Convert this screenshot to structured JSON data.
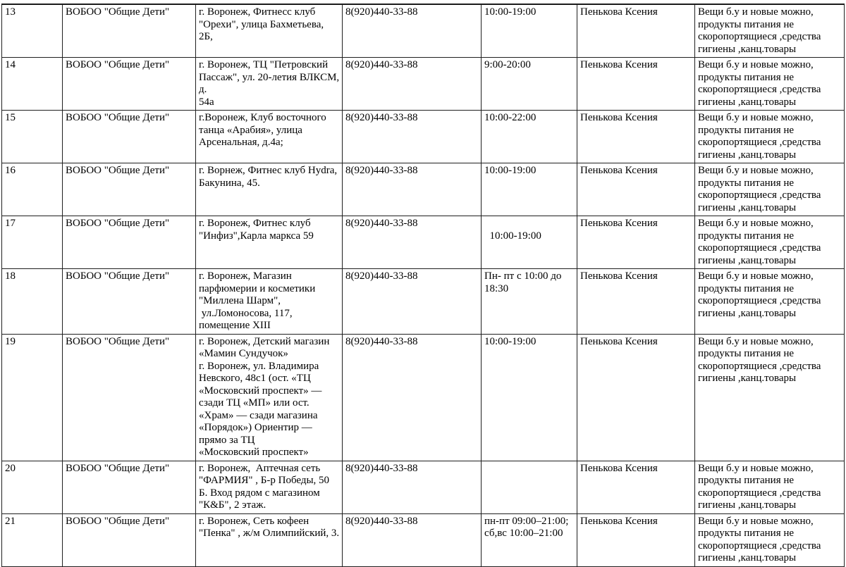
{
  "table": {
    "rows": [
      {
        "num": "13",
        "org": "ВОБОО \"Общие Дети\"",
        "address": "г. Воронеж, Фитнесс клуб \"Орехи\", улица Бахметьева, 2Б,",
        "phone": "8(920)440-33-88",
        "hours": "10:00-19:00",
        "contact": "Пенькова Ксения",
        "items": "Вещи б.у и новые можно, продукты питания не скоропортящиеся ,средства гигиены ,канц.товары"
      },
      {
        "num": "14",
        "org": "ВОБОО \"Общие Дети\"",
        "address": "г. Воронеж, ТЦ \"Петровский Пассаж\", ул. 20-летия ВЛКСМ, д.\n54а",
        "phone": "8(920)440-33-88",
        "hours": "9:00-20:00",
        "contact": "Пенькова Ксения",
        "items": "Вещи б.у и новые можно, продукты питания не скоропортящиеся ,средства гигиены ,канц.товары"
      },
      {
        "num": "15",
        "org": "ВОБОО \"Общие Дети\"",
        "address": "г.Воронеж, Клуб восточного танца «Арабия», улица Арсенальная, д.4а;",
        "phone": "8(920)440-33-88",
        "hours": "10:00-22:00",
        "contact": "Пенькова Ксения",
        "items": "Вещи б.у и новые можно, продукты питания не скоропортящиеся ,средства гигиены ,канц.товары"
      },
      {
        "num": "16",
        "org": "ВОБОО \"Общие Дети\"",
        "address": "г. Ворнеж, Фитнес клуб Hydra, Бакунина, 45.",
        "phone": "8(920)440-33-88",
        "hours": "10:00-19:00",
        "contact": "Пенькова Ксения",
        "items": "Вещи б.у и новые можно, продукты питания не скоропортящиеся ,средства гигиены ,канц.товары"
      },
      {
        "num": "17",
        "org": "ВОБОО \"Общие Дети\"",
        "address": "г. Воронеж, Фитнес клуб \"Инфиз\",Карла маркса 59",
        "phone": "8(920)440-33-88",
        "hours": "\n  10:00-19:00",
        "contact": "Пенькова Ксения",
        "items": "Вещи б.у и новые можно, продукты питания не скоропортящиеся ,средства гигиены ,канц.товары"
      },
      {
        "num": "18",
        "org": "ВОБОО \"Общие Дети\"",
        "address": "г. Воронеж, Магазин парфюмерии и косметики \"Миллена Шарм\",\n ул.Ломоносова, 117,\nпомещение XIII",
        "phone": "8(920)440-33-88",
        "hours": "Пн- пт с 10:00 до 18:30",
        "contact": "Пенькова Ксения",
        "items": "Вещи б.у и новые можно, продукты питания не скоропортящиеся ,средства гигиены ,канц.товары"
      },
      {
        "num": "19",
        "org": "ВОБОО \"Общие Дети\"",
        "address": "г. Воронеж, Детский магазин «Мамин Сундучок»\nг. Воронеж, ул. Владимира Невского, 48с1 (ост. «ТЦ «Московский проспект» — сзади ТЦ «МП» или ост. «Храм» — сзади магазина «Порядок») Ориентир — прямо за ТЦ\n«Московский проспект»",
        "phone": "8(920)440-33-88",
        "hours": "10:00-19:00",
        "contact": "Пенькова Ксения",
        "items": "Вещи б.у и новые можно, продукты питания не скоропортящиеся ,средства гигиены ,канц.товары"
      },
      {
        "num": "20",
        "org": "ВОБОО \"Общие Дети\"",
        "address": "г. Воронеж,  Аптечная сеть \"ФАРМИЯ\" , Б-р Победы, 50 Б. Вход рядом с магазином \"К&Б\", 2 этаж.",
        "phone": "8(920)440-33-88",
        "hours": "",
        "contact": "Пенькова Ксения",
        "items": "Вещи б.у и новые можно, продукты питания не скоропортящиеся ,средства гигиены ,канц.товары"
      },
      {
        "num": "21",
        "org": "ВОБОО \"Общие Дети\"",
        "address": "г. Воронеж, Сеть кофеен \"Пенка\" , ж/м Олимпийский, 3.",
        "phone": "8(920)440-33-88",
        "hours": "пн-пт 09:00–21:00; сб,вс 10:00–21:00",
        "contact": "Пенькова Ксения",
        "items": "Вещи б.у и новые можно, продукты питания не скоропортящиеся ,средства гигиены ,канц.товары"
      }
    ]
  }
}
